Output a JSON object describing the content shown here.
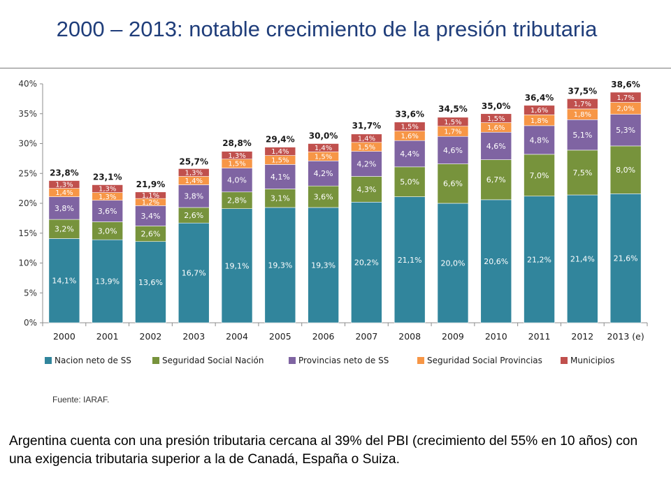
{
  "slide": {
    "title": "2000 – 2013: notable crecimiento de la presión tributaria",
    "source": "Fuente: IARAF.",
    "body": "Argentina cuenta con una presión tributaria cercana al 39% del PBI (crecimiento del 55% en 10 años) con una exigencia tributaria superior a la de Canadá, España o Suiza."
  },
  "chart_data": {
    "type": "bar",
    "stacked": true,
    "categories": [
      "2000",
      "2001",
      "2002",
      "2003",
      "2004",
      "2005",
      "2006",
      "2007",
      "2008",
      "2009",
      "2010",
      "2011",
      "2012",
      "2013 (e)"
    ],
    "series": [
      {
        "name": "Nacion neto de SS",
        "color": "#31859c",
        "values": [
          14.1,
          13.9,
          13.6,
          16.7,
          19.1,
          19.3,
          19.3,
          20.2,
          21.1,
          20.0,
          20.6,
          21.2,
          21.4,
          21.6
        ],
        "labels": [
          "14,1%",
          "13,9%",
          "13,6%",
          "16,7%",
          "19,1%",
          "19,3%",
          "19,3%",
          "20,2%",
          "21,1%",
          "20,0%",
          "20,6%",
          "21,2%",
          "21,4%",
          "21,6%"
        ]
      },
      {
        "name": "Seguridad Social Nación",
        "color": "#77933c",
        "values": [
          3.2,
          3.0,
          2.6,
          2.6,
          2.8,
          3.1,
          3.6,
          4.3,
          5.0,
          6.6,
          6.7,
          7.0,
          7.5,
          8.0
        ],
        "labels": [
          "3,2%",
          "3,0%",
          "2,6%",
          "2,6%",
          "2,8%",
          "3,1%",
          "3,6%",
          "4,3%",
          "5,0%",
          "6,6%",
          "6,7%",
          "7,0%",
          "7,5%",
          "8,0%"
        ]
      },
      {
        "name": "Provincias neto de SS",
        "color": "#7f64a2",
        "values": [
          3.8,
          3.6,
          3.4,
          3.8,
          4.0,
          4.1,
          4.2,
          4.2,
          4.4,
          4.6,
          4.6,
          4.8,
          5.1,
          5.3
        ],
        "labels": [
          "3,8%",
          "3,6%",
          "3,4%",
          "3,8%",
          "4,0%",
          "4,1%",
          "4,2%",
          "4,2%",
          "4,4%",
          "4,6%",
          "4,6%",
          "4,8%",
          "5,1%",
          "5,3%"
        ]
      },
      {
        "name": "Seguridad Social Provincias",
        "color": "#f79646",
        "values": [
          1.4,
          1.3,
          1.2,
          1.4,
          1.5,
          1.5,
          1.5,
          1.5,
          1.6,
          1.7,
          1.6,
          1.8,
          1.8,
          2.0
        ],
        "labels": [
          "1,4%",
          "1,3%",
          "1,2%",
          "1,4%",
          "1,5%",
          "1,5%",
          "1,5%",
          "1,5%",
          "1,6%",
          "1,7%",
          "1,6%",
          "1,8%",
          "1,8%",
          "2,0%"
        ]
      },
      {
        "name": "Municipios",
        "color": "#c0504d",
        "values": [
          1.3,
          1.3,
          1.1,
          1.3,
          1.3,
          1.4,
          1.4,
          1.4,
          1.5,
          1.5,
          1.5,
          1.6,
          1.7,
          1.7
        ],
        "labels": [
          "1,3%",
          "1,3%",
          "1,1%",
          "1,3%",
          "1,3%",
          "1,4%",
          "1,4%",
          "1,4%",
          "1,5%",
          "1,5%",
          "1,5%",
          "1,6%",
          "1,7%",
          "1,7%"
        ]
      }
    ],
    "totals": [
      23.8,
      23.1,
      21.9,
      25.7,
      28.8,
      29.4,
      30.0,
      31.7,
      33.6,
      34.5,
      35.0,
      36.4,
      37.5,
      38.6
    ],
    "total_labels": [
      "23,8%",
      "23,1%",
      "21,9%",
      "25,7%",
      "28,8%",
      "29,4%",
      "30,0%",
      "31,7%",
      "33,6%",
      "34,5%",
      "35,0%",
      "36,4%",
      "37,5%",
      "38,6%"
    ],
    "ylim": [
      0,
      40
    ],
    "yticks": [
      "0%",
      "5%",
      "10%",
      "15%",
      "20%",
      "25%",
      "30%",
      "35%",
      "40%"
    ],
    "grid": false,
    "legend_position": "bottom"
  }
}
